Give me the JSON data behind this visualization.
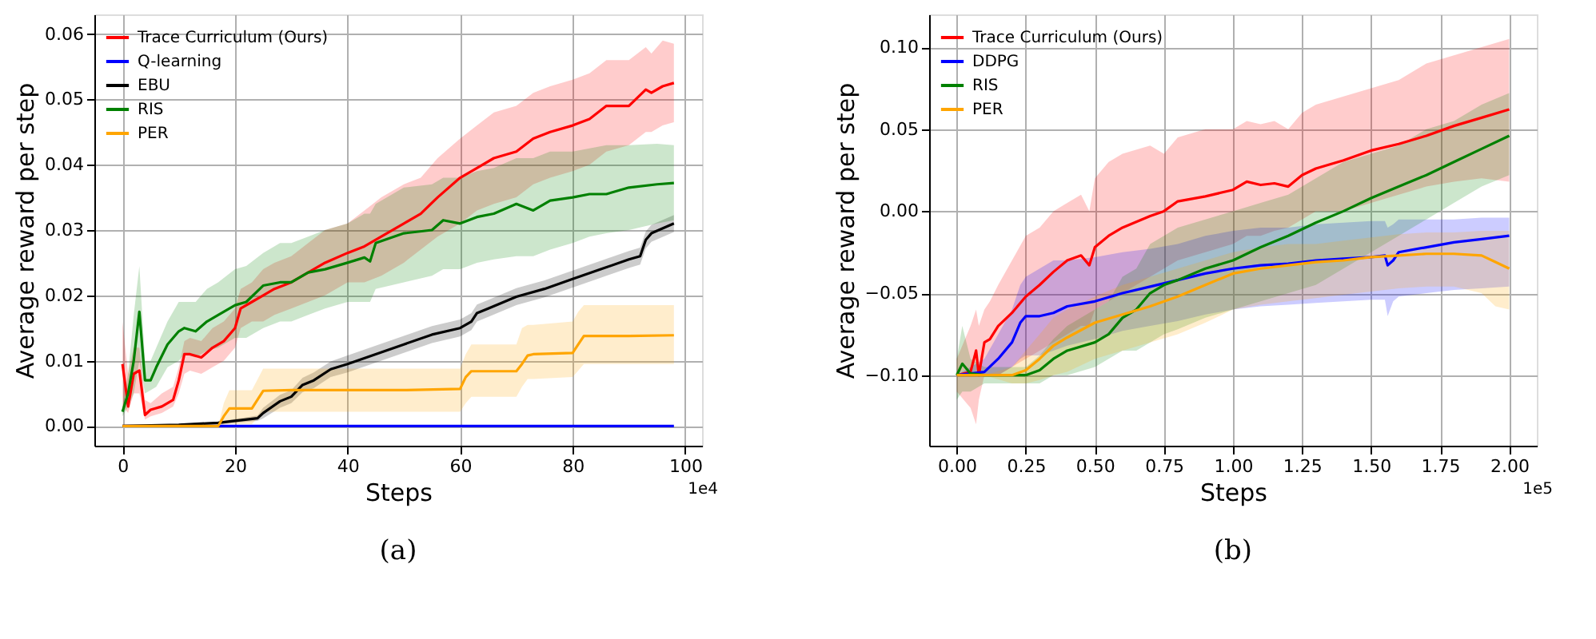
{
  "chart_data": [
    {
      "type": "line",
      "xlabel": "Steps",
      "ylabel": "Average reward per step",
      "annotations": [
        "1e4",
        "(a)"
      ],
      "grid": true,
      "legend": "top left",
      "xlim": [
        -5,
        103
      ],
      "xticks": [
        0,
        20,
        40,
        60,
        80,
        100
      ],
      "ylim": [
        -0.003,
        0.063
      ],
      "yticks": [
        {
          "value": 0,
          "label": "0.00"
        },
        {
          "value": 0.01,
          "label": "0.01"
        },
        {
          "value": 0.02,
          "label": "0.02"
        },
        {
          "value": 0.03,
          "label": "0.03"
        },
        {
          "value": 0.04,
          "label": "0.04"
        },
        {
          "value": 0.05,
          "label": "0.05"
        },
        {
          "value": 0.06,
          "label": "0.06"
        }
      ],
      "series": [
        {
          "name": "Trace Curriculum (Ours)",
          "color": "#ff0000",
          "x": [
            0,
            1,
            2,
            3,
            4,
            5,
            7,
            9,
            10,
            11,
            12,
            14,
            16,
            18,
            20,
            21,
            23,
            25,
            27,
            30,
            33,
            36,
            40,
            43,
            46,
            50,
            53,
            56,
            60,
            63,
            66,
            70,
            73,
            76,
            80,
            83,
            86,
            90,
            93,
            94,
            96,
            98
          ],
          "values": [
            0.0095,
            0.003,
            0.008,
            0.0085,
            0.0017,
            0.0025,
            0.003,
            0.004,
            0.007,
            0.011,
            0.011,
            0.0105,
            0.012,
            0.013,
            0.015,
            0.018,
            0.019,
            0.02,
            0.021,
            0.022,
            0.0235,
            0.025,
            0.0265,
            0.0275,
            0.029,
            0.031,
            0.0325,
            0.035,
            0.038,
            0.0395,
            0.041,
            0.042,
            0.044,
            0.045,
            0.046,
            0.047,
            0.049,
            0.049,
            0.0515,
            0.051,
            0.052,
            0.0525
          ],
          "lower": [
            0.003,
            0.002,
            0.005,
            0.005,
            0.001,
            0.0015,
            0.002,
            0.003,
            0.005,
            0.008,
            0.0085,
            0.008,
            0.009,
            0.01,
            0.012,
            0.015,
            0.016,
            0.016,
            0.017,
            0.018,
            0.019,
            0.02,
            0.022,
            0.022,
            0.023,
            0.025,
            0.027,
            0.029,
            0.031,
            0.033,
            0.034,
            0.035,
            0.037,
            0.038,
            0.039,
            0.04,
            0.042,
            0.043,
            0.045,
            0.045,
            0.046,
            0.0465
          ],
          "upper": [
            0.016,
            0.008,
            0.012,
            0.012,
            0.004,
            0.0035,
            0.005,
            0.006,
            0.009,
            0.013,
            0.0135,
            0.013,
            0.015,
            0.016,
            0.018,
            0.021,
            0.022,
            0.024,
            0.025,
            0.026,
            0.028,
            0.03,
            0.031,
            0.033,
            0.035,
            0.037,
            0.038,
            0.041,
            0.044,
            0.046,
            0.048,
            0.049,
            0.051,
            0.052,
            0.053,
            0.054,
            0.056,
            0.056,
            0.058,
            0.057,
            0.059,
            0.0585
          ]
        },
        {
          "name": "Q-learning",
          "color": "#0000ff",
          "x": [
            0,
            98
          ],
          "values": [
            0,
            0
          ]
        },
        {
          "name": "EBU",
          "color": "#000000",
          "x": [
            0,
            10,
            17,
            20,
            24,
            25,
            28,
            30,
            32,
            34,
            37,
            40,
            45,
            50,
            55,
            60,
            62,
            63,
            65,
            70,
            75,
            80,
            85,
            90,
            92,
            93,
            94,
            98
          ],
          "values": [
            0,
            0.0002,
            0.0005,
            0.0008,
            0.0012,
            0.002,
            0.0038,
            0.0045,
            0.0063,
            0.007,
            0.0087,
            0.0095,
            0.011,
            0.0125,
            0.014,
            0.015,
            0.016,
            0.0173,
            0.018,
            0.0198,
            0.021,
            0.0225,
            0.024,
            0.0255,
            0.026,
            0.0285,
            0.0295,
            0.031
          ],
          "lower": [
            0,
            0.0001,
            0.0003,
            0.0005,
            0.0008,
            0.0012,
            0.0028,
            0.0035,
            0.0052,
            0.0058,
            0.0075,
            0.0082,
            0.0097,
            0.0112,
            0.0127,
            0.0137,
            0.0147,
            0.016,
            0.0167,
            0.0185,
            0.0197,
            0.0212,
            0.0227,
            0.0242,
            0.0247,
            0.0272,
            0.0282,
            0.0297
          ],
          "upper": [
            0,
            0.0003,
            0.0007,
            0.0011,
            0.0016,
            0.0028,
            0.0048,
            0.0055,
            0.0074,
            0.0082,
            0.0099,
            0.0108,
            0.0123,
            0.0138,
            0.0153,
            0.0163,
            0.0173,
            0.0186,
            0.0193,
            0.0211,
            0.0223,
            0.0238,
            0.0253,
            0.0268,
            0.0273,
            0.0298,
            0.0308,
            0.0323
          ]
        },
        {
          "name": "RIS",
          "color": "#008000",
          "x": [
            0,
            1,
            2,
            3,
            4,
            5,
            6,
            8,
            10,
            11,
            13,
            15,
            17,
            20,
            22,
            25,
            28,
            30,
            33,
            36,
            40,
            43,
            44,
            45,
            50,
            55,
            57,
            60,
            63,
            66,
            70,
            73,
            76,
            80,
            83,
            86,
            90,
            95,
            98
          ],
          "values": [
            0.0022,
            0.005,
            0.01,
            0.0175,
            0.007,
            0.007,
            0.009,
            0.0125,
            0.0145,
            0.015,
            0.0145,
            0.016,
            0.017,
            0.0185,
            0.019,
            0.0215,
            0.022,
            0.022,
            0.0235,
            0.024,
            0.025,
            0.0258,
            0.0252,
            0.028,
            0.0295,
            0.03,
            0.0315,
            0.031,
            0.032,
            0.0325,
            0.034,
            0.033,
            0.0345,
            0.035,
            0.0355,
            0.0355,
            0.0365,
            0.037,
            0.0372
          ],
          "lower": [
            0.0015,
            0.003,
            0.005,
            0.01,
            0.005,
            0.0055,
            0.006,
            0.009,
            0.01,
            0.011,
            0.0105,
            0.0115,
            0.012,
            0.0135,
            0.0135,
            0.015,
            0.016,
            0.016,
            0.017,
            0.018,
            0.019,
            0.019,
            0.019,
            0.021,
            0.022,
            0.023,
            0.024,
            0.024,
            0.025,
            0.0255,
            0.026,
            0.026,
            0.027,
            0.028,
            0.029,
            0.0295,
            0.03,
            0.031,
            0.0315
          ],
          "upper": [
            0.003,
            0.008,
            0.017,
            0.0245,
            0.01,
            0.01,
            0.012,
            0.016,
            0.019,
            0.019,
            0.019,
            0.021,
            0.022,
            0.024,
            0.0245,
            0.0265,
            0.028,
            0.028,
            0.029,
            0.03,
            0.031,
            0.0325,
            0.0325,
            0.034,
            0.0365,
            0.037,
            0.038,
            0.038,
            0.039,
            0.0395,
            0.041,
            0.041,
            0.042,
            0.042,
            0.0425,
            0.043,
            0.043,
            0.0432,
            0.043
          ]
        },
        {
          "name": "PER",
          "color": "#ffa500",
          "x": [
            0,
            17,
            18,
            19,
            23,
            25,
            30,
            40,
            50,
            60,
            61,
            62,
            70,
            71,
            72,
            73,
            80,
            81,
            82,
            90,
            98
          ],
          "values": [
            0,
            0,
            0.0015,
            0.0027,
            0.0027,
            0.0054,
            0.0055,
            0.0055,
            0.0055,
            0.0057,
            0.0075,
            0.0084,
            0.0084,
            0.0095,
            0.0108,
            0.011,
            0.0112,
            0.0125,
            0.0138,
            0.0138,
            0.0139
          ],
          "lower": [
            0,
            0,
            0.0002,
            0.0003,
            0.0003,
            0.0022,
            0.0022,
            0.0022,
            0.0022,
            0.0022,
            0.0035,
            0.0045,
            0.0045,
            0.006,
            0.0072,
            0.0072,
            0.0075,
            0.0085,
            0.0095,
            0.0095,
            0.0095
          ],
          "upper": [
            0,
            0,
            0.0035,
            0.0055,
            0.0055,
            0.0088,
            0.0088,
            0.0088,
            0.0088,
            0.0088,
            0.011,
            0.0125,
            0.0125,
            0.015,
            0.0155,
            0.0155,
            0.016,
            0.0175,
            0.0185,
            0.0185,
            0.0185
          ]
        }
      ]
    },
    {
      "type": "line",
      "xlabel": "Steps",
      "ylabel": "Average reward per step",
      "annotations": [
        "1e5",
        "(b)"
      ],
      "grid": true,
      "legend": "top left",
      "xlim": [
        -0.1,
        2.1
      ],
      "xticks": [
        {
          "value": 0,
          "label": "0.00"
        },
        {
          "value": 0.25,
          "label": "0.25"
        },
        {
          "value": 0.5,
          "label": "0.50"
        },
        {
          "value": 0.75,
          "label": "0.75"
        },
        {
          "value": 1,
          "label": "1.00"
        },
        {
          "value": 1.25,
          "label": "1.25"
        },
        {
          "value": 1.5,
          "label": "1.50"
        },
        {
          "value": 1.75,
          "label": "1.75"
        },
        {
          "value": 2,
          "label": "2.00"
        }
      ],
      "ylim": [
        -0.143,
        0.12
      ],
      "yticks": [
        {
          "value": -0.1,
          "label": "−0.10"
        },
        {
          "value": -0.05,
          "label": "−0.05"
        },
        {
          "value": 0,
          "label": "0.00"
        },
        {
          "value": 0.05,
          "label": "0.05"
        },
        {
          "value": 0.1,
          "label": "0.10"
        }
      ],
      "series": [
        {
          "name": "Trace Curriculum (Ours)",
          "color": "#ff0000",
          "x": [
            0,
            0.05,
            0.07,
            0.08,
            0.1,
            0.12,
            0.15,
            0.2,
            0.25,
            0.3,
            0.35,
            0.4,
            0.45,
            0.48,
            0.5,
            0.55,
            0.6,
            0.7,
            0.75,
            0.8,
            0.9,
            1.0,
            1.05,
            1.1,
            1.15,
            1.2,
            1.25,
            1.3,
            1.4,
            1.5,
            1.6,
            1.7,
            1.8,
            1.9,
            2.0
          ],
          "values": [
            -0.1,
            -0.098,
            -0.085,
            -0.1,
            -0.08,
            -0.078,
            -0.07,
            -0.062,
            -0.052,
            -0.045,
            -0.037,
            -0.03,
            -0.027,
            -0.033,
            -0.022,
            -0.015,
            -0.01,
            -0.003,
            0.0,
            0.006,
            0.009,
            0.013,
            0.018,
            0.016,
            0.017,
            0.015,
            0.022,
            0.026,
            0.031,
            0.037,
            0.041,
            0.046,
            0.052,
            0.057,
            0.062
          ],
          "lower": [
            -0.11,
            -0.12,
            -0.13,
            -0.115,
            -0.1,
            -0.1,
            -0.1,
            -0.095,
            -0.09,
            -0.085,
            -0.08,
            -0.075,
            -0.07,
            -0.07,
            -0.06,
            -0.055,
            -0.05,
            -0.04,
            -0.035,
            -0.03,
            -0.025,
            -0.02,
            -0.015,
            -0.015,
            -0.012,
            -0.01,
            -0.005,
            0.0,
            0.0,
            0.005,
            0.01,
            0.015,
            0.018,
            0.02,
            0.018
          ],
          "upper": [
            -0.09,
            -0.07,
            -0.06,
            -0.07,
            -0.06,
            -0.055,
            -0.045,
            -0.03,
            -0.015,
            -0.01,
            0.0,
            0.005,
            0.01,
            0.0,
            0.02,
            0.03,
            0.035,
            0.04,
            0.035,
            0.045,
            0.05,
            0.05,
            0.055,
            0.053,
            0.055,
            0.05,
            0.06,
            0.065,
            0.07,
            0.075,
            0.08,
            0.09,
            0.095,
            0.1,
            0.105
          ]
        },
        {
          "name": "DDPG",
          "color": "#0000ff",
          "x": [
            0,
            0.1,
            0.15,
            0.2,
            0.23,
            0.25,
            0.3,
            0.35,
            0.4,
            0.5,
            0.6,
            0.7,
            0.8,
            0.9,
            1.0,
            1.1,
            1.2,
            1.3,
            1.4,
            1.5,
            1.55,
            1.56,
            1.58,
            1.6,
            1.7,
            1.8,
            1.9,
            2.0
          ],
          "values": [
            -0.1,
            -0.098,
            -0.09,
            -0.08,
            -0.068,
            -0.064,
            -0.064,
            -0.062,
            -0.058,
            -0.055,
            -0.05,
            -0.046,
            -0.042,
            -0.038,
            -0.035,
            -0.033,
            -0.032,
            -0.03,
            -0.029,
            -0.028,
            -0.027,
            -0.033,
            -0.03,
            -0.025,
            -0.022,
            -0.019,
            -0.017,
            -0.015
          ],
          "lower": [
            -0.1,
            -0.1,
            -0.1,
            -0.095,
            -0.09,
            -0.088,
            -0.088,
            -0.085,
            -0.082,
            -0.078,
            -0.073,
            -0.07,
            -0.067,
            -0.063,
            -0.06,
            -0.058,
            -0.057,
            -0.056,
            -0.055,
            -0.054,
            -0.054,
            -0.064,
            -0.055,
            -0.052,
            -0.05,
            -0.048,
            -0.047,
            -0.046
          ],
          "upper": [
            -0.1,
            -0.09,
            -0.075,
            -0.06,
            -0.045,
            -0.04,
            -0.035,
            -0.03,
            -0.03,
            -0.028,
            -0.025,
            -0.023,
            -0.02,
            -0.015,
            -0.012,
            -0.01,
            -0.01,
            -0.008,
            -0.007,
            -0.006,
            -0.006,
            -0.01,
            -0.008,
            -0.005,
            -0.005,
            -0.005,
            -0.004,
            -0.004
          ]
        },
        {
          "name": "RIS",
          "color": "#008000",
          "x": [
            0,
            0.02,
            0.05,
            0.1,
            0.2,
            0.25,
            0.3,
            0.35,
            0.4,
            0.5,
            0.55,
            0.6,
            0.65,
            0.7,
            0.75,
            0.8,
            0.9,
            1.0,
            1.1,
            1.2,
            1.3,
            1.4,
            1.5,
            1.6,
            1.7,
            1.8,
            1.9,
            2.0
          ],
          "values": [
            -0.1,
            -0.093,
            -0.099,
            -0.1,
            -0.1,
            -0.1,
            -0.097,
            -0.09,
            -0.085,
            -0.08,
            -0.075,
            -0.065,
            -0.06,
            -0.05,
            -0.045,
            -0.042,
            -0.035,
            -0.03,
            -0.022,
            -0.015,
            -0.007,
            0.0,
            0.008,
            0.015,
            0.022,
            0.03,
            0.038,
            0.046
          ],
          "lower": [
            -0.115,
            -0.11,
            -0.11,
            -0.105,
            -0.105,
            -0.105,
            -0.105,
            -0.1,
            -0.1,
            -0.095,
            -0.09,
            -0.085,
            -0.085,
            -0.08,
            -0.075,
            -0.072,
            -0.065,
            -0.06,
            -0.055,
            -0.05,
            -0.045,
            -0.035,
            -0.025,
            -0.015,
            -0.005,
            0.005,
            0.015,
            0.022
          ],
          "upper": [
            -0.09,
            -0.07,
            -0.09,
            -0.095,
            -0.095,
            -0.095,
            -0.088,
            -0.078,
            -0.07,
            -0.06,
            -0.055,
            -0.04,
            -0.035,
            -0.02,
            -0.015,
            -0.01,
            -0.005,
            0.0,
            0.005,
            0.01,
            0.02,
            0.03,
            0.035,
            0.04,
            0.05,
            0.055,
            0.065,
            0.072
          ]
        },
        {
          "name": "PER",
          "color": "#ffa500",
          "x": [
            0,
            0.1,
            0.2,
            0.25,
            0.3,
            0.35,
            0.4,
            0.5,
            0.6,
            0.7,
            0.8,
            0.9,
            1.0,
            1.1,
            1.2,
            1.3,
            1.4,
            1.5,
            1.6,
            1.7,
            1.8,
            1.9,
            1.95,
            2.0
          ],
          "values": [
            -0.1,
            -0.1,
            -0.1,
            -0.097,
            -0.09,
            -0.082,
            -0.077,
            -0.068,
            -0.063,
            -0.058,
            -0.052,
            -0.045,
            -0.038,
            -0.035,
            -0.033,
            -0.031,
            -0.03,
            -0.028,
            -0.027,
            -0.026,
            -0.026,
            -0.027,
            -0.031,
            -0.035
          ],
          "lower": [
            -0.1,
            -0.1,
            -0.105,
            -0.105,
            -0.103,
            -0.1,
            -0.098,
            -0.09,
            -0.085,
            -0.08,
            -0.075,
            -0.068,
            -0.06,
            -0.057,
            -0.055,
            -0.053,
            -0.051,
            -0.049,
            -0.047,
            -0.046,
            -0.046,
            -0.05,
            -0.058,
            -0.06
          ],
          "upper": [
            -0.1,
            -0.1,
            -0.095,
            -0.085,
            -0.075,
            -0.065,
            -0.06,
            -0.052,
            -0.045,
            -0.04,
            -0.035,
            -0.03,
            -0.025,
            -0.022,
            -0.02,
            -0.02,
            -0.018,
            -0.016,
            -0.014,
            -0.013,
            -0.013,
            -0.012,
            -0.012,
            -0.012
          ]
        }
      ]
    }
  ]
}
